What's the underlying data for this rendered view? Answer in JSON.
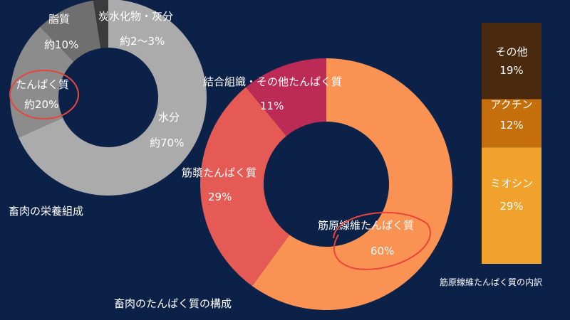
{
  "chart_data": [
    {
      "type": "pie",
      "title": "畜肉の栄養組成",
      "slices": [
        {
          "name": "水分",
          "label": "水分",
          "value_label": "約70%",
          "value": 70,
          "color": "#ababab"
        },
        {
          "name": "たんぱく質",
          "label": "たんぱく質",
          "value_label": "約20%",
          "value": 20,
          "color": "#8c8c8c"
        },
        {
          "name": "脂質",
          "label": "脂質",
          "value_label": "約10%",
          "value": 10,
          "color": "#6f6f6f"
        },
        {
          "name": "炭水化物・灰分",
          "label": "炭水化物・灰分",
          "value_label": "約2〜3%",
          "value": 2.5,
          "color": "#3b3b3b"
        }
      ],
      "highlight": "たんぱく質"
    },
    {
      "type": "pie",
      "title": "畜肉のたんぱく質の構成",
      "slices": [
        {
          "name": "筋原線維たんぱく質",
          "label": "筋原線維たんぱく質",
          "value_label": "60%",
          "value": 60,
          "color": "#f99252"
        },
        {
          "name": "筋漿たんぱく質",
          "label": "筋漿たんぱく質",
          "value_label": "29%",
          "value": 29,
          "color": "#e55a55"
        },
        {
          "name": "結合組織・その他たんぱく質",
          "label": "結合組織・その他たんぱく質",
          "value_label": "11%",
          "value": 11,
          "color": "#bb2b55"
        }
      ],
      "highlight": "筋原線維たんぱく質"
    },
    {
      "type": "bar",
      "title": "筋原線維たんぱく質の内訳",
      "segments": [
        {
          "name": "ミオシン",
          "label": "ミオシン",
          "value_label": "29%",
          "value": 29,
          "color": "#f1a22c"
        },
        {
          "name": "アクチン",
          "label": "アクチン",
          "value_label": "12%",
          "value": 12,
          "color": "#c46f0c"
        },
        {
          "name": "その他",
          "label": "その他",
          "value_label": "19%",
          "value": 19,
          "color": "#4a2a0e"
        }
      ]
    }
  ],
  "colors": {
    "background": "#0c2148",
    "highlight_circle": "#e8453c"
  }
}
